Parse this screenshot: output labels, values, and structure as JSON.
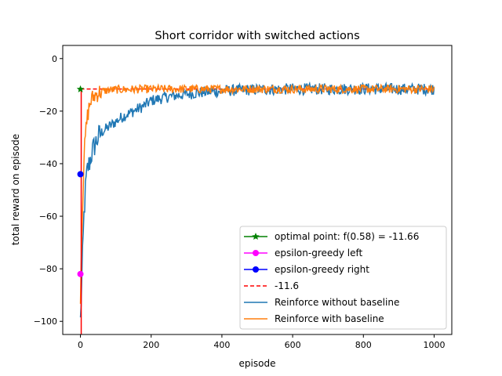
{
  "chart_data": {
    "type": "line",
    "title": "Short corridor with switched actions",
    "xlabel": "episode",
    "ylabel": "total reward on episode",
    "xlim": [
      -50,
      1050
    ],
    "ylim": [
      -105,
      5
    ],
    "xticks": [
      0,
      200,
      400,
      600,
      800,
      1000
    ],
    "yticks": [
      0,
      -20,
      -40,
      -60,
      -80,
      -100
    ],
    "legend_position": "lower right",
    "series": [
      {
        "name": "optimal point: f(0.58) = -11.66",
        "kind": "point",
        "color": "#008000",
        "marker": "star",
        "points": [
          [
            0,
            -11.66
          ]
        ]
      },
      {
        "name": "epsilon-greedy left",
        "kind": "point",
        "color": "#ff00ff",
        "marker": "circle",
        "points": [
          [
            0,
            -82
          ]
        ]
      },
      {
        "name": "epsilon-greedy right",
        "kind": "point",
        "color": "#0000ff",
        "marker": "circle",
        "points": [
          [
            0,
            -44
          ]
        ]
      },
      {
        "name": "-11.6",
        "kind": "hline",
        "color": "#ff0000",
        "dash": true,
        "y": -11.6,
        "x_range": [
          0,
          1000
        ]
      },
      {
        "name": "Reinforce without baseline",
        "kind": "line",
        "color": "#1f77b4",
        "x": [
          0,
          5,
          10,
          15,
          20,
          25,
          30,
          40,
          50,
          60,
          80,
          100,
          120,
          150,
          180,
          200,
          250,
          300,
          350,
          400,
          450,
          500,
          600,
          700,
          800,
          900,
          1000
        ],
        "y": [
          -100,
          -80,
          -60,
          -48,
          -42,
          -40,
          -37,
          -33,
          -30,
          -28,
          -26,
          -24,
          -22,
          -20,
          -18,
          -16,
          -14.5,
          -13.5,
          -12.8,
          -12.3,
          -12,
          -11.8,
          -11.6,
          -11.6,
          -11.5,
          -11.6,
          -11.6
        ],
        "noise": 2.2
      },
      {
        "name": "Reinforce with baseline",
        "kind": "line",
        "color": "#ff7f0e",
        "x": [
          0,
          5,
          10,
          15,
          20,
          25,
          30,
          40,
          50,
          60,
          80,
          100,
          150,
          200,
          300,
          400,
          500,
          600,
          700,
          800,
          900,
          1000
        ],
        "y": [
          -90,
          -60,
          -38,
          -28,
          -22,
          -18,
          -16,
          -14,
          -13,
          -12.5,
          -12,
          -11.8,
          -11.7,
          -11.6,
          -11.6,
          -11.6,
          -11.6,
          -11.6,
          -11.6,
          -11.6,
          -11.6,
          -11.6
        ],
        "noise": 1.6
      }
    ]
  }
}
